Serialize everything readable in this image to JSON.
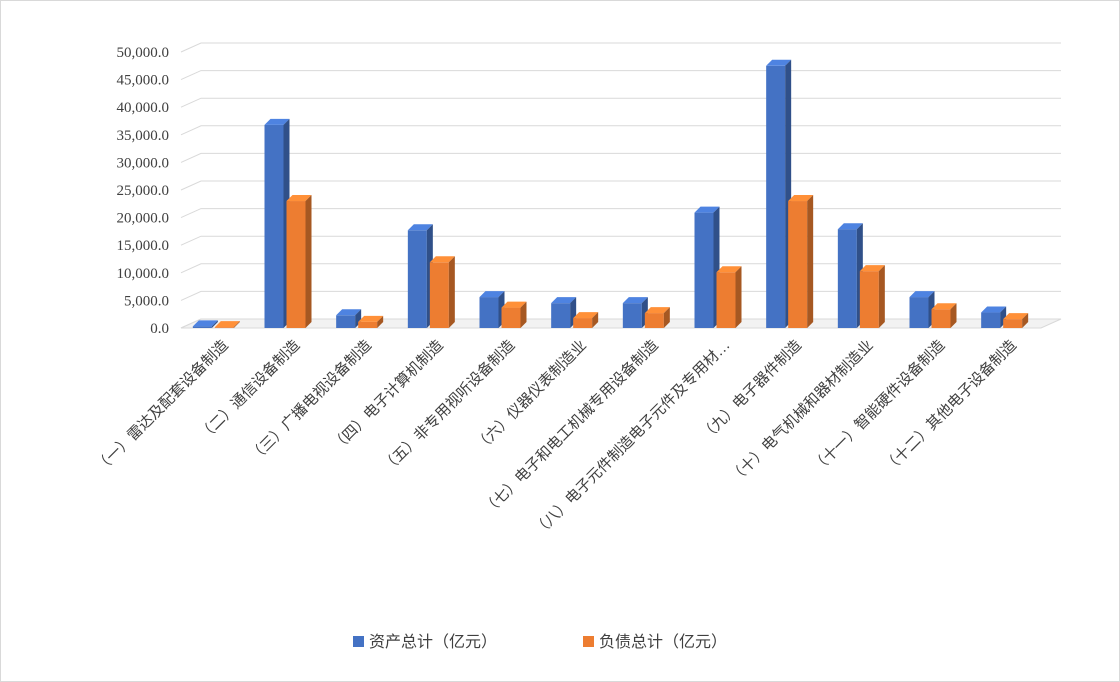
{
  "chart_data": {
    "type": "bar",
    "style": "3d-clustered-column",
    "categories": [
      "（一）雷达及配套设备制造",
      "（二）通信设备制造",
      "（三）广播电视设备制造",
      "（四）电子计算机制造",
      "（五）非专用视听设备制造",
      "（六）仪器仪表制造业",
      "（七）电子和电工机械专用设备制造",
      "（八）电子元件制造电子元件及专用材…",
      "（九）电子器件制造",
      "（十）电气机械和器材制造业",
      "（十一）智能硬件设备制造",
      "（十二）其他电子设备制造"
    ],
    "series": [
      {
        "name": "资产总计（亿元）",
        "color": "#4472C4",
        "values": [
          300,
          36800,
          2300,
          17700,
          5600,
          4500,
          4500,
          20900,
          47500,
          17900,
          5600,
          2800
        ]
      },
      {
        "name": "负债总计（亿元）",
        "color": "#ED7D31",
        "values": [
          150,
          23000,
          1100,
          11900,
          3700,
          1800,
          2700,
          10100,
          23000,
          10300,
          3400,
          1600
        ]
      }
    ],
    "yticks": [
      "0.0",
      "5,000.0",
      "10,000.0",
      "15,000.0",
      "20,000.0",
      "25,000.0",
      "30,000.0",
      "35,000.0",
      "40,000.0",
      "45,000.0",
      "50,000.0"
    ],
    "ylim": [
      0,
      50000
    ],
    "grid": true,
    "legend_position": "bottom"
  }
}
